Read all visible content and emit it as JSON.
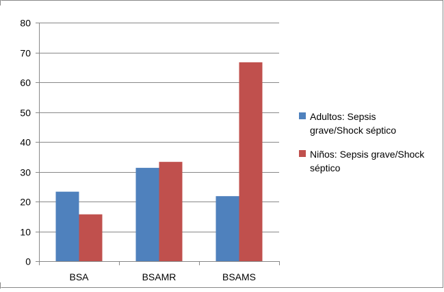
{
  "chart_data": {
    "type": "bar",
    "categories": [
      "BSA",
      "BSAMR",
      "BSAMS"
    ],
    "series": [
      {
        "name": "Adultos: Sepsis grave/Shock séptico",
        "name_lines": [
          "Adultos: Sepsis",
          "grave/Shock séptico"
        ],
        "color": "#4F81BD",
        "values": [
          23.3,
          31.3,
          21.8
        ]
      },
      {
        "name": "Niños: Sepsis grave/Shock séptico",
        "name_lines": [
          "Niños: Sepsis grave/Shock",
          "séptico"
        ],
        "color": "#C0504D",
        "values": [
          15.7,
          33.3,
          66.7
        ]
      }
    ],
    "ylim": [
      0,
      80
    ],
    "yticks": [
      0,
      10,
      20,
      30,
      40,
      50,
      60,
      70,
      80
    ],
    "grid": true,
    "legend_position": "right",
    "title": "",
    "xlabel": "",
    "ylabel": ""
  }
}
